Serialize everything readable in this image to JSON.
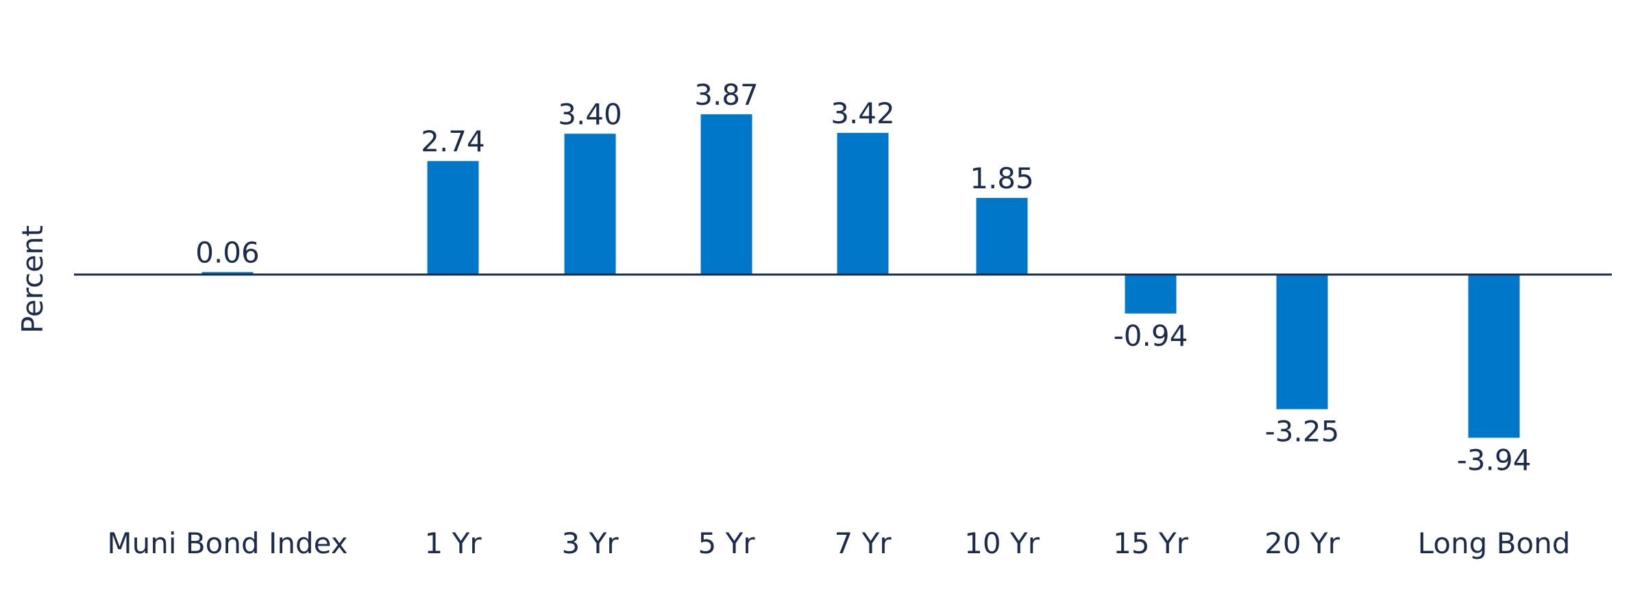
{
  "colors": {
    "bar": "#0077C8",
    "text": "#1A2B4C",
    "axis": "#1A2B4C",
    "background": "#FFFFFF"
  },
  "chart_data": {
    "type": "bar",
    "categories": [
      "Muni Bond Index",
      "1 Yr",
      "3 Yr",
      "5 Yr",
      "7 Yr",
      "10 Yr",
      "15 Yr",
      "20 Yr",
      "Long Bond"
    ],
    "values": [
      0.06,
      2.74,
      3.4,
      3.87,
      3.42,
      1.85,
      -0.94,
      -3.25,
      -3.94
    ],
    "value_labels": [
      "0.06",
      "2.74",
      "3.40",
      "3.87",
      "3.42",
      "1.85",
      "-0.94",
      "-3.25",
      "-3.94"
    ],
    "ylabel": "Percent",
    "ylim": [
      -5.0,
      5.8
    ],
    "grid": false,
    "legend": "none",
    "zero_line": true
  }
}
